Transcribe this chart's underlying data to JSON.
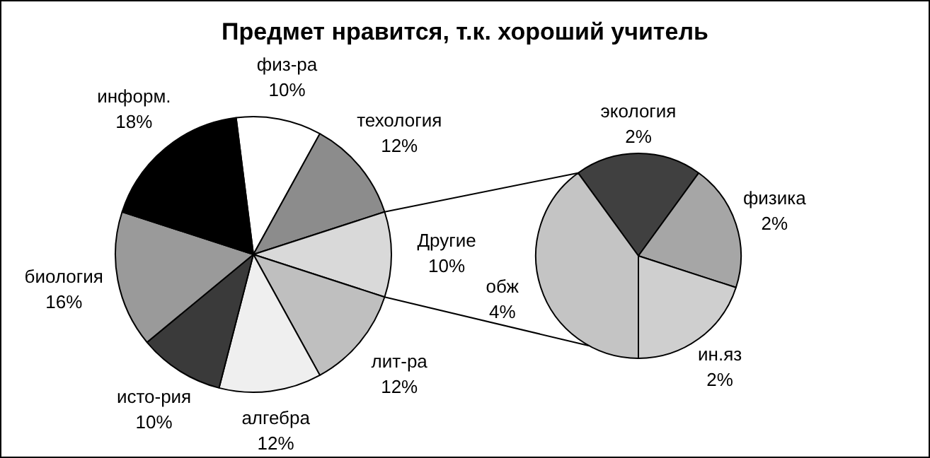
{
  "chart_data": [
    {
      "type": "pie",
      "title": "Предмет нравится, т.к. хороший учитель",
      "categories": [
        "физ-ра",
        "техология",
        "Другие",
        "лит-ра",
        "алгебра",
        "исто-рия",
        "биология",
        "информ."
      ],
      "values": [
        10,
        12,
        10,
        12,
        12,
        10,
        16,
        18
      ],
      "value_labels": [
        "10%",
        "12%",
        "10%",
        "12%",
        "12%",
        "10%",
        "16%",
        "18%"
      ],
      "colors": [
        "#ffffff",
        "#8c8c8c",
        "#d9d9d9",
        "#bfbfbf",
        "#efefef",
        "#3a3a3a",
        "#9a9a9a",
        "#000000"
      ]
    },
    {
      "type": "pie",
      "categories": [
        "экология",
        "физика",
        "ин.яз",
        "обж"
      ],
      "values": [
        2,
        2,
        2,
        4
      ],
      "value_labels": [
        "2%",
        "2%",
        "2%",
        "4%"
      ],
      "colors": [
        "#404040",
        "#a6a6a6",
        "#cfcfcf",
        "#c4c4c4"
      ]
    }
  ]
}
